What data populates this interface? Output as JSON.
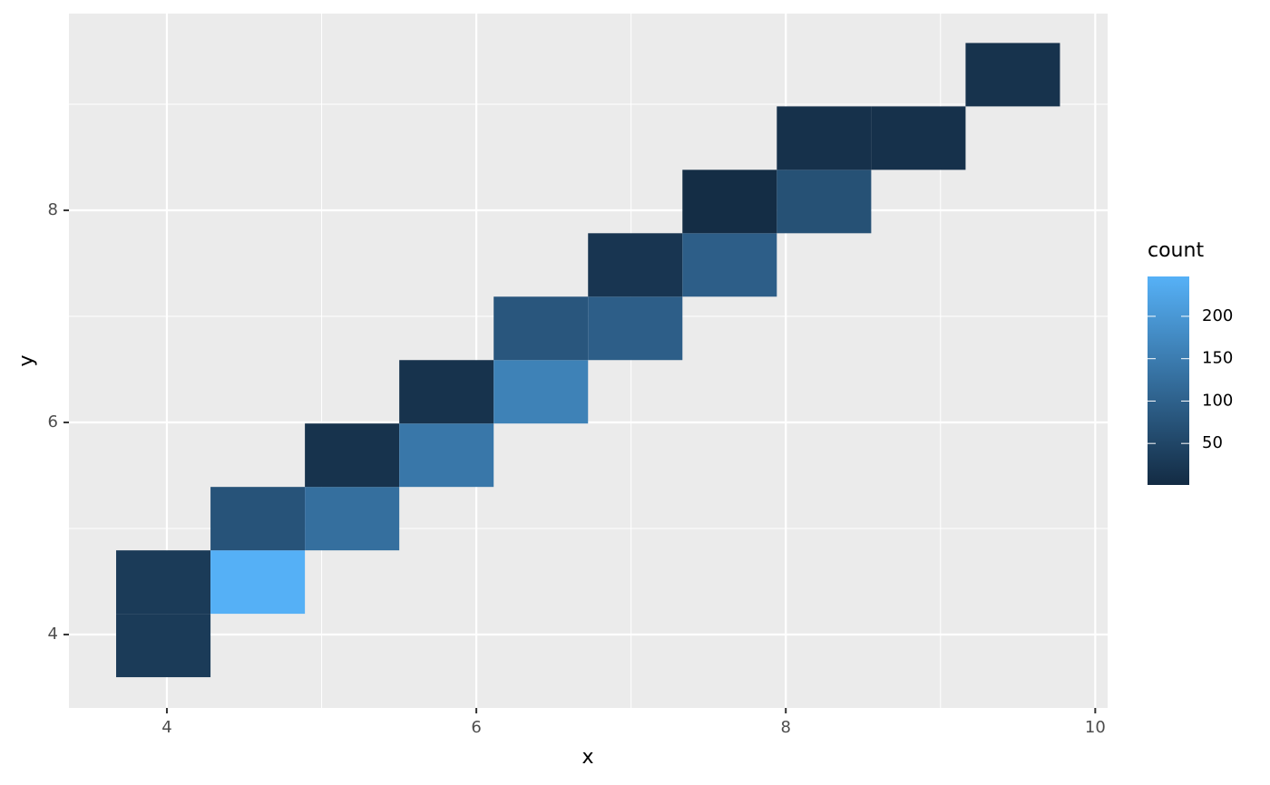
{
  "chart_data": {
    "type": "heatmap",
    "x_label": "x",
    "y_label": "y",
    "legend_title": "count",
    "xlim": [
      3.367,
      10.08
    ],
    "ylim": [
      3.308,
      9.855
    ],
    "xticks": [
      4,
      6,
      8,
      10
    ],
    "yticks": [
      4,
      6,
      8
    ],
    "xminor": [
      5,
      7,
      9
    ],
    "yminor": [
      5,
      7,
      9
    ],
    "grid": true,
    "color_low": "#132b43",
    "color_high": "#56b1f7",
    "colorlim": [
      1,
      247
    ],
    "colorticks": [
      50,
      100,
      150,
      200
    ],
    "tiles": [
      {
        "xmin": 3.672,
        "xmax": 4.282,
        "ymin": 3.598,
        "ymax": 4.196,
        "count": 30
      },
      {
        "xmin": 3.672,
        "xmax": 4.282,
        "ymin": 4.196,
        "ymax": 4.794,
        "count": 30
      },
      {
        "xmin": 4.282,
        "xmax": 4.892,
        "ymin": 4.196,
        "ymax": 4.794,
        "count": 245
      },
      {
        "xmin": 4.282,
        "xmax": 4.892,
        "ymin": 4.794,
        "ymax": 5.392,
        "count": 75
      },
      {
        "xmin": 4.892,
        "xmax": 5.502,
        "ymin": 4.794,
        "ymax": 5.392,
        "count": 125
      },
      {
        "xmin": 4.892,
        "xmax": 5.502,
        "ymin": 5.392,
        "ymax": 5.99,
        "count": 15
      },
      {
        "xmin": 5.502,
        "xmax": 6.112,
        "ymin": 5.392,
        "ymax": 5.99,
        "count": 140
      },
      {
        "xmin": 5.502,
        "xmax": 6.112,
        "ymin": 5.99,
        "ymax": 6.588,
        "count": 15
      },
      {
        "xmin": 6.112,
        "xmax": 6.722,
        "ymin": 5.99,
        "ymax": 6.588,
        "count": 160
      },
      {
        "xmin": 6.112,
        "xmax": 6.722,
        "ymin": 6.588,
        "ymax": 7.186,
        "count": 80
      },
      {
        "xmin": 6.722,
        "xmax": 7.332,
        "ymin": 6.588,
        "ymax": 7.186,
        "count": 95
      },
      {
        "xmin": 6.722,
        "xmax": 7.332,
        "ymin": 7.186,
        "ymax": 7.784,
        "count": 20
      },
      {
        "xmin": 7.332,
        "xmax": 7.942,
        "ymin": 7.186,
        "ymax": 7.784,
        "count": 95
      },
      {
        "xmin": 7.332,
        "xmax": 7.942,
        "ymin": 7.784,
        "ymax": 8.382,
        "count": 4
      },
      {
        "xmin": 7.942,
        "xmax": 8.552,
        "ymin": 7.784,
        "ymax": 8.382,
        "count": 70
      },
      {
        "xmin": 7.942,
        "xmax": 8.552,
        "ymin": 8.382,
        "ymax": 8.98,
        "count": 12
      },
      {
        "xmin": 8.552,
        "xmax": 9.162,
        "ymin": 8.382,
        "ymax": 8.98,
        "count": 12
      },
      {
        "xmin": 9.162,
        "xmax": 9.772,
        "ymin": 8.98,
        "ymax": 9.578,
        "count": 15
      }
    ]
  }
}
